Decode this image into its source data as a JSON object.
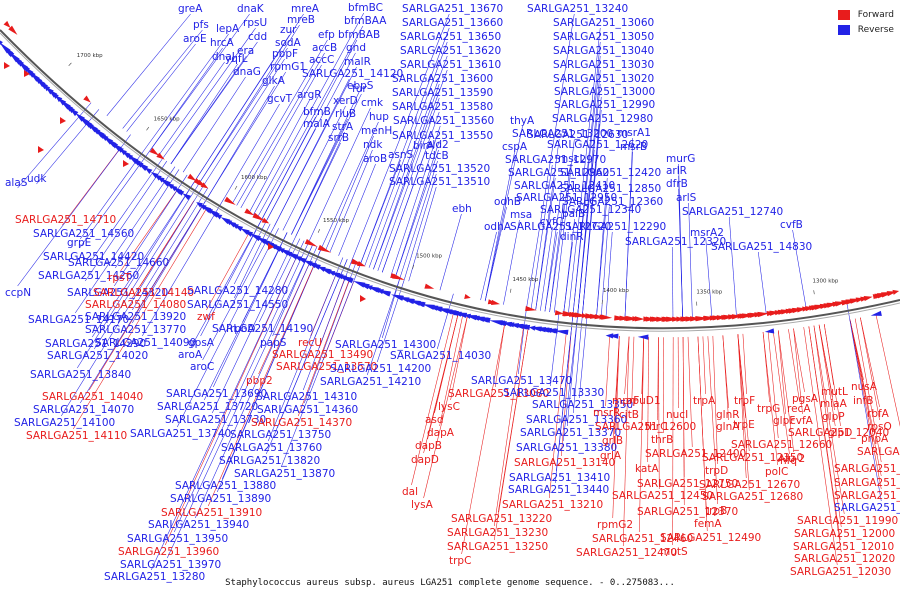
{
  "colors": {
    "forward": "#e81c1c",
    "reverse": "#2222e6"
  },
  "legend": [
    {
      "label": "Forward",
      "color": "#e81c1c"
    },
    {
      "label": "Reverse",
      "color": "#2222e6"
    }
  ],
  "caption": "Staphylococcus aureus subsp. aureus LGA251 complete genome sequence. - 0..275083...",
  "ticks": [
    "1700 kbp",
    "1650 kbp",
    "1600 kbp",
    "1550 kbp",
    "1500 kbp",
    "1450 kbp",
    "1400 kbp",
    "1350 kbp",
    "1300 kbp"
  ],
  "labels": [
    {
      "t": "greA",
      "s": "r"
    },
    {
      "t": "pfs",
      "s": "r"
    },
    {
      "t": "aroE",
      "s": "r"
    },
    {
      "t": "dnaK",
      "s": "r"
    },
    {
      "t": "lepA",
      "s": "r"
    },
    {
      "t": "rpsU",
      "s": "r"
    },
    {
      "t": "hrcA",
      "s": "r"
    },
    {
      "t": "cdd",
      "s": "r"
    },
    {
      "t": "dnaJ",
      "s": "r"
    },
    {
      "t": "yqfL",
      "s": "r"
    },
    {
      "t": "era",
      "s": "r"
    },
    {
      "t": "dnaG",
      "s": "r"
    },
    {
      "t": "mreA",
      "s": "r"
    },
    {
      "t": "mreB",
      "s": "r"
    },
    {
      "t": "zur",
      "s": "r"
    },
    {
      "t": "sodA",
      "s": "r"
    },
    {
      "t": "pbpF",
      "s": "r"
    },
    {
      "t": "rpmG1",
      "s": "r"
    },
    {
      "t": "glkA",
      "s": "r"
    },
    {
      "t": "gcvT",
      "s": "r"
    },
    {
      "t": "bfmBC",
      "s": "r"
    },
    {
      "t": "bfmBAA",
      "s": "r"
    },
    {
      "t": "efp",
      "s": "r"
    },
    {
      "t": "bfmBAB",
      "s": "r"
    },
    {
      "t": "accB",
      "s": "r"
    },
    {
      "t": "gnd",
      "s": "r"
    },
    {
      "t": "accC",
      "s": "r"
    },
    {
      "t": "malR",
      "s": "r"
    },
    {
      "t": "SARLGA251_14120",
      "s": "r"
    },
    {
      "t": "argR",
      "s": "r"
    },
    {
      "t": "fur",
      "s": "r"
    },
    {
      "t": "ebpS",
      "s": "r"
    },
    {
      "t": "xerD",
      "s": "r"
    },
    {
      "t": "bfmB",
      "s": "r"
    },
    {
      "t": "malA",
      "s": "r"
    },
    {
      "t": "cmk",
      "s": "r"
    },
    {
      "t": "rluB",
      "s": "r"
    },
    {
      "t": "hup",
      "s": "r"
    },
    {
      "t": "strA",
      "s": "r"
    },
    {
      "t": "srrB",
      "s": "r"
    },
    {
      "t": "menH",
      "s": "r"
    },
    {
      "t": "ndk",
      "s": "r"
    },
    {
      "t": "aroB",
      "s": "r"
    },
    {
      "t": "alaS",
      "s": "r"
    },
    {
      "t": "udk",
      "s": "r"
    },
    {
      "t": "SARLGA251_13670",
      "s": "r"
    },
    {
      "t": "SARLGA251_13660",
      "s": "r"
    },
    {
      "t": "SARLGA251_13650",
      "s": "r"
    },
    {
      "t": "SARLGA251_13620",
      "s": "r"
    },
    {
      "t": "SARLGA251_13610",
      "s": "r"
    },
    {
      "t": "SARLGA251_13600",
      "s": "r"
    },
    {
      "t": "SARLGA251_13590",
      "s": "r"
    },
    {
      "t": "SARLGA251_13580",
      "s": "r"
    },
    {
      "t": "SARLGA251_13560",
      "s": "r"
    },
    {
      "t": "SARLGA251_13550",
      "s": "r"
    },
    {
      "t": "birA",
      "s": "r"
    },
    {
      "t": "ald2",
      "s": "r"
    },
    {
      "t": "asnS",
      "s": "r"
    },
    {
      "t": "tdcB",
      "s": "r"
    },
    {
      "t": "SARLGA251_13520",
      "s": "r"
    },
    {
      "t": "SARLGA251_13510",
      "s": "r"
    },
    {
      "t": "ebh",
      "s": "r"
    },
    {
      "t": "SARLGA251_13240",
      "s": "r"
    },
    {
      "t": "SARLGA251_13060",
      "s": "r"
    },
    {
      "t": "SARLGA251_13050",
      "s": "r"
    },
    {
      "t": "SARLGA251_13040",
      "s": "r"
    },
    {
      "t": "SARLGA251_13030",
      "s": "r"
    },
    {
      "t": "SARLGA251_13020",
      "s": "r"
    },
    {
      "t": "SARLGA251_13000",
      "s": "r"
    },
    {
      "t": "SARLGA251_12990",
      "s": "r"
    },
    {
      "t": "SARLGA251_12980",
      "s": "r"
    },
    {
      "t": "thyA",
      "s": "r"
    },
    {
      "t": "SARLGA251_13200",
      "s": "r"
    },
    {
      "t": "SARLGA251_12630",
      "s": "r"
    },
    {
      "t": "msrA1",
      "s": "r"
    },
    {
      "t": "cspA",
      "s": "r"
    },
    {
      "t": "SARLGA251_12620",
      "s": "r"
    },
    {
      "t": "msrB",
      "s": "r"
    },
    {
      "t": "SARLGA251_12970",
      "s": "r"
    },
    {
      "t": "mscL",
      "s": "r"
    },
    {
      "t": "murG",
      "s": "r"
    },
    {
      "t": "SARLGA251_12960",
      "s": "r"
    },
    {
      "t": "SARLGA251_12420",
      "s": "r"
    },
    {
      "t": "arlR",
      "s": "r"
    },
    {
      "t": "SARLGA251_12410",
      "s": "r"
    },
    {
      "t": "dfrB",
      "s": "r"
    },
    {
      "t": "odhB",
      "s": "r"
    },
    {
      "t": "SARLGA251_12950",
      "s": "r"
    },
    {
      "t": "SARLGA251_12850",
      "s": "r"
    },
    {
      "t": "SARLGA251_12360",
      "s": "r"
    },
    {
      "t": "arlS",
      "s": "r"
    },
    {
      "t": "msa",
      "s": "r"
    },
    {
      "t": "SARLGA251_12340",
      "s": "r"
    },
    {
      "t": "SARLGA251_12740",
      "s": "r"
    },
    {
      "t": "paiB",
      "s": "r"
    },
    {
      "t": "cvfC",
      "s": "r"
    },
    {
      "t": "odhA",
      "s": "r"
    },
    {
      "t": "SARLGA251_12720",
      "s": "r"
    },
    {
      "t": "SARLGA251_12290",
      "s": "r"
    },
    {
      "t": "cvfB",
      "s": "r"
    },
    {
      "t": "dinR",
      "s": "r"
    },
    {
      "t": "msrA2",
      "s": "r"
    },
    {
      "t": "SARLGA251_12320",
      "s": "r"
    },
    {
      "t": "SARLGA251_14830",
      "s": "r"
    },
    {
      "t": "SARLGA251_14710",
      "s": "f"
    },
    {
      "t": "SARLGA251_14560",
      "s": "r"
    },
    {
      "t": "grpE",
      "s": "r"
    },
    {
      "t": "SARLGA251_14420",
      "s": "r"
    },
    {
      "t": "SARLGA251_14660",
      "s": "r"
    },
    {
      "t": "SARLGA251_14260",
      "s": "r"
    },
    {
      "t": "rpsT",
      "s": "f"
    },
    {
      "t": "ccpN",
      "s": "r"
    },
    {
      "t": "SARLGA251_14320",
      "s": "r"
    },
    {
      "t": "SARLGA251_14140",
      "s": "f"
    },
    {
      "t": "SARLGA251_14280",
      "s": "r"
    },
    {
      "t": "SARLGA251_14080",
      "s": "f"
    },
    {
      "t": "SARLGA251_14550",
      "s": "r"
    },
    {
      "t": "SARLGA251_14170",
      "s": "r"
    },
    {
      "t": "SARLGA251_13920",
      "s": "r"
    },
    {
      "t": "zwf",
      "s": "f"
    },
    {
      "t": "SARLGA251_14190",
      "s": "r"
    },
    {
      "t": "SARLGA251_13770",
      "s": "r"
    },
    {
      "t": "rpoD",
      "s": "r"
    },
    {
      "t": "SARLGA251_14290",
      "s": "r"
    },
    {
      "t": "SARLGA251_14090",
      "s": "r"
    },
    {
      "t": "gpsA",
      "s": "r"
    },
    {
      "t": "papS",
      "s": "r"
    },
    {
      "t": "recU",
      "s": "f"
    },
    {
      "t": "SARLGA251_14300",
      "s": "r"
    },
    {
      "t": "SARLGA251_14020",
      "s": "r"
    },
    {
      "t": "aroA",
      "s": "r"
    },
    {
      "t": "SARLGA251_13490",
      "s": "f"
    },
    {
      "t": "SARLGA251_14030",
      "s": "r"
    },
    {
      "t": "aroC",
      "s": "r"
    },
    {
      "t": "SARLGA251_13570",
      "s": "f"
    },
    {
      "t": "SARLGA251_14200",
      "s": "r"
    },
    {
      "t": "SARLGA251_13840",
      "s": "r"
    },
    {
      "t": "pbp2",
      "s": "f"
    },
    {
      "t": "SARLGA251_14210",
      "s": "r"
    },
    {
      "t": "SARLGA251_14040",
      "s": "f"
    },
    {
      "t": "SARLGA251_13690",
      "s": "r"
    },
    {
      "t": "SARLGA251_14310",
      "s": "r"
    },
    {
      "t": "SARLGA251_14070",
      "s": "r"
    },
    {
      "t": "SARLGA251_13720",
      "s": "r"
    },
    {
      "t": "SARLGA251_14360",
      "s": "r"
    },
    {
      "t": "SARLGA251_14100",
      "s": "r"
    },
    {
      "t": "SARLGA251_13730",
      "s": "r"
    },
    {
      "t": "SARLGA251_14370",
      "s": "f"
    },
    {
      "t": "SARLGA251_14110",
      "s": "f"
    },
    {
      "t": "SARLGA251_13740",
      "s": "r"
    },
    {
      "t": "SARLGA251_13750",
      "s": "r"
    },
    {
      "t": "SARLGA251_13760",
      "s": "r"
    },
    {
      "t": "SARLGA251_13820",
      "s": "r"
    },
    {
      "t": "SARLGA251_13870",
      "s": "r"
    },
    {
      "t": "SARLGA251_13880",
      "s": "r"
    },
    {
      "t": "SARLGA251_13890",
      "s": "r"
    },
    {
      "t": "SARLGA251_13910",
      "s": "f"
    },
    {
      "t": "SARLGA251_13940",
      "s": "r"
    },
    {
      "t": "SARLGA251_13950",
      "s": "r"
    },
    {
      "t": "SARLGA251_13960",
      "s": "f"
    },
    {
      "t": "SARLGA251_13970",
      "s": "r"
    },
    {
      "t": "SARLGA251_13280",
      "s": "r"
    },
    {
      "t": "SARLGA251_13470",
      "s": "r"
    },
    {
      "t": "SARLGA251_13080",
      "s": "f"
    },
    {
      "t": "SARLGA251_13330",
      "s": "r"
    },
    {
      "t": "lysC",
      "s": "f"
    },
    {
      "t": "SARLGA251_13350",
      "s": "r"
    },
    {
      "t": "asd",
      "s": "f"
    },
    {
      "t": "SARLGA251_13360",
      "s": "r"
    },
    {
      "t": "dapA",
      "s": "f"
    },
    {
      "t": "SARLGA251_13370",
      "s": "r"
    },
    {
      "t": "dapB",
      "s": "f"
    },
    {
      "t": "SARLGA251_13380",
      "s": "r"
    },
    {
      "t": "dapD",
      "s": "f"
    },
    {
      "t": "SARLGA251_13140",
      "s": "f"
    },
    {
      "t": "SARLGA251_13410",
      "s": "r"
    },
    {
      "t": "dal",
      "s": "f"
    },
    {
      "t": "SARLGA251_13440",
      "s": "r"
    },
    {
      "t": "lysA",
      "s": "f"
    },
    {
      "t": "SARLGA251_13210",
      "s": "f"
    },
    {
      "t": "SARLGA251_13220",
      "s": "f"
    },
    {
      "t": "SARLGA251_13230",
      "s": "f"
    },
    {
      "t": "SARLGA251_13250",
      "s": "f"
    },
    {
      "t": "trpC",
      "s": "f"
    },
    {
      "t": "mprF",
      "s": "f"
    },
    {
      "t": "opuD1",
      "s": "f"
    },
    {
      "t": "trpA",
      "s": "f"
    },
    {
      "t": "msrR",
      "s": "f"
    },
    {
      "t": "citB",
      "s": "f"
    },
    {
      "t": "nucI",
      "s": "f"
    },
    {
      "t": "trpF",
      "s": "f"
    },
    {
      "t": "SARLGA251_12600",
      "s": "f"
    },
    {
      "t": "thrC",
      "s": "f"
    },
    {
      "t": "glnR",
      "s": "f"
    },
    {
      "t": "trpE",
      "s": "f"
    },
    {
      "t": "grlB",
      "s": "f"
    },
    {
      "t": "thrB",
      "s": "f"
    },
    {
      "t": "glnA",
      "s": "f"
    },
    {
      "t": "trpG",
      "s": "f"
    },
    {
      "t": "grlA",
      "s": "f"
    },
    {
      "t": "SARLGA251_12400",
      "s": "f"
    },
    {
      "t": "SARLGA251_12350",
      "s": "f"
    },
    {
      "t": "SARLGA251_12660",
      "s": "f"
    },
    {
      "t": "katA",
      "s": "f"
    },
    {
      "t": "trpD",
      "s": "f"
    },
    {
      "t": "rpmG2",
      "s": "f"
    },
    {
      "t": "SARLGA251_12670",
      "s": "f"
    },
    {
      "t": "SARLGA251_12750",
      "s": "f"
    },
    {
      "t": "SARLGA251_12450",
      "s": "f"
    },
    {
      "t": "SARLGA251_12680",
      "s": "f"
    },
    {
      "t": "SARLGA251_12370",
      "s": "f"
    },
    {
      "t": "trpB",
      "s": "f"
    },
    {
      "t": "SARLGA251_12460",
      "s": "f"
    },
    {
      "t": "femA",
      "s": "f"
    },
    {
      "t": "SARLGA251_12470",
      "s": "f"
    },
    {
      "t": "SARLGA251_12490",
      "s": "f"
    },
    {
      "t": "mutS",
      "s": "f"
    },
    {
      "t": "pgsA",
      "s": "f"
    },
    {
      "t": "mutL",
      "s": "f"
    },
    {
      "t": "recA",
      "s": "f"
    },
    {
      "t": "miaA",
      "s": "f"
    },
    {
      "t": "glpF",
      "s": "f"
    },
    {
      "t": "cvfA",
      "s": "f"
    },
    {
      "t": "glpP",
      "s": "f"
    },
    {
      "t": "SARLGA251_12040",
      "s": "f"
    },
    {
      "t": "glpD",
      "s": "f"
    },
    {
      "t": "hfq",
      "s": "f"
    },
    {
      "t": "Alu-2",
      "s": "f"
    },
    {
      "t": "polC",
      "s": "f"
    },
    {
      "t": "nusA",
      "s": "f"
    },
    {
      "t": "infB",
      "s": "f"
    },
    {
      "t": "rbfA",
      "s": "f"
    },
    {
      "t": "rpsO",
      "s": "f"
    },
    {
      "t": "pnpA",
      "s": "f"
    },
    {
      "t": "SARLGA251_11910",
      "s": "f"
    },
    {
      "t": "SARLGA251_11920",
      "s": "f"
    },
    {
      "t": "SARLGA251_11930",
      "s": "f"
    },
    {
      "t": "SARLGA251_11950",
      "s": "f"
    },
    {
      "t": "SARLGA251_11980",
      "s": "r"
    },
    {
      "t": "SARLGA251_11990",
      "s": "f"
    },
    {
      "t": "SARLGA251_12000",
      "s": "f"
    },
    {
      "t": "SARLGA251_12010",
      "s": "f"
    },
    {
      "t": "SARLGA251_12020",
      "s": "f"
    },
    {
      "t": "SARLGA251_12030",
      "s": "f"
    }
  ]
}
